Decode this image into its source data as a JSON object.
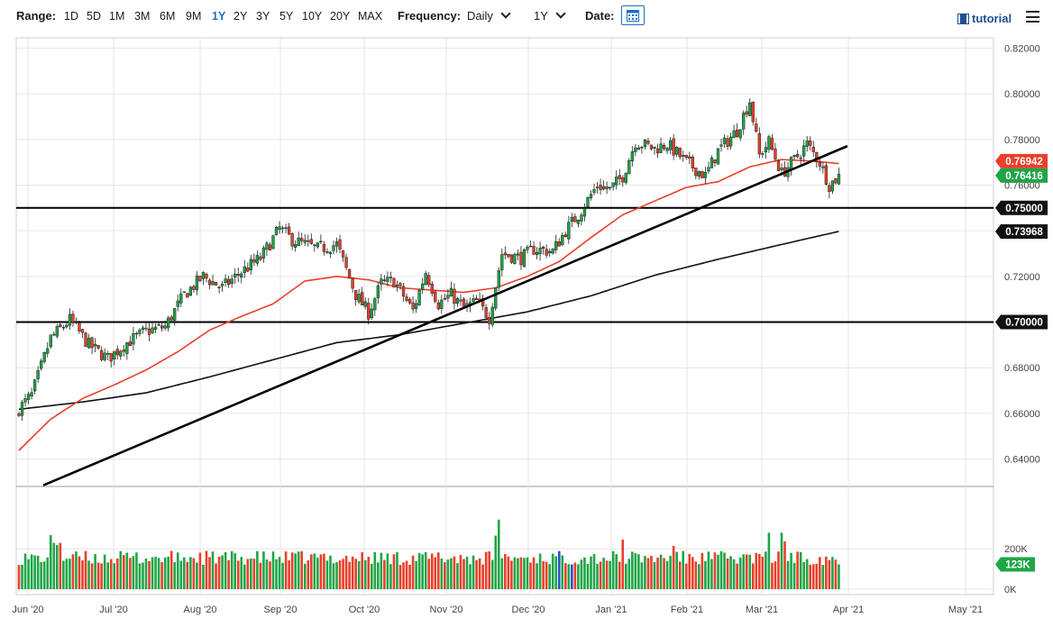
{
  "toolbar": {
    "range_label": "Range:",
    "ranges": [
      "1D",
      "5D",
      "1M",
      "3M",
      "6M",
      "9M",
      "1Y",
      "2Y",
      "3Y",
      "5Y",
      "10Y",
      "20Y",
      "MAX"
    ],
    "active_range": "1Y",
    "frequency_label": "Frequency:",
    "frequency_value": "Daily",
    "period_value": "1Y",
    "date_label": "Date:",
    "tutorial_label": "tutorial"
  },
  "colors": {
    "up": "#1fa547",
    "down": "#e8402a",
    "ma50": "#e8402a",
    "ma200": "#111111",
    "accent": "#1f6fc4",
    "volume_special": "#2a4fc8"
  },
  "chart_data": [
    {
      "type": "candlestick",
      "title": "",
      "x_ticks": [
        "Jun '20",
        "Jul '20",
        "Aug '20",
        "Sep '20",
        "Oct '20",
        "Nov '20",
        "Dec '20",
        "Jan '21",
        "Feb '21",
        "Mar '21",
        "Apr '21",
        "May '21"
      ],
      "y_ticks": [
        "0.64000",
        "0.66000",
        "0.68000",
        "0.70000",
        "0.72000",
        "0.74000",
        "0.76000",
        "0.78000",
        "0.80000",
        "0.82000"
      ],
      "ylim": [
        0.628,
        0.8245
      ],
      "price_tags": [
        {
          "label": "0.76942",
          "value": 0.76942,
          "color": "#e8402a"
        },
        {
          "label": "0.76416",
          "value": 0.76416,
          "color": "#1fa547"
        },
        {
          "label": "0.75000",
          "value": 0.75,
          "color": "#111111"
        },
        {
          "label": "0.73968",
          "value": 0.73968,
          "color": "#111111"
        },
        {
          "label": "0.70000",
          "value": 0.7,
          "color": "#111111"
        }
      ],
      "horizontal_lines": [
        0.7,
        0.75
      ],
      "trendline": [
        [
          0.6285,
          0.7771
        ]
      ],
      "ohlc_anchor_closes": [
        [
          0,
          0.662
        ],
        [
          4,
          0.668
        ],
        [
          10,
          0.693
        ],
        [
          16,
          0.701
        ],
        [
          22,
          0.69
        ],
        [
          28,
          0.684
        ],
        [
          34,
          0.691
        ],
        [
          40,
          0.696
        ],
        [
          46,
          0.698
        ],
        [
          52,
          0.712
        ],
        [
          58,
          0.72
        ],
        [
          64,
          0.715
        ],
        [
          70,
          0.722
        ],
        [
          76,
          0.728
        ],
        [
          82,
          0.741
        ],
        [
          86,
          0.736
        ],
        [
          94,
          0.732
        ],
        [
          100,
          0.734
        ],
        [
          106,
          0.712
        ],
        [
          110,
          0.704
        ],
        [
          114,
          0.717
        ],
        [
          118,
          0.718
        ],
        [
          124,
          0.705
        ],
        [
          128,
          0.722
        ],
        [
          132,
          0.708
        ],
        [
          136,
          0.712
        ],
        [
          140,
          0.706
        ],
        [
          144,
          0.709
        ],
        [
          148,
          0.702
        ],
        [
          152,
          0.73
        ],
        [
          158,
          0.728
        ],
        [
          162,
          0.732
        ],
        [
          168,
          0.731
        ],
        [
          172,
          0.74
        ],
        [
          176,
          0.747
        ],
        [
          182,
          0.76
        ],
        [
          186,
          0.758
        ],
        [
          190,
          0.764
        ],
        [
          194,
          0.779
        ],
        [
          200,
          0.776
        ],
        [
          204,
          0.778
        ],
        [
          210,
          0.77
        ],
        [
          216,
          0.764
        ],
        [
          220,
          0.775
        ],
        [
          226,
          0.784
        ],
        [
          230,
          0.797
        ],
        [
          233,
          0.773
        ],
        [
          236,
          0.779
        ],
        [
          240,
          0.765
        ],
        [
          244,
          0.771
        ],
        [
          248,
          0.778
        ],
        [
          252,
          0.77
        ],
        [
          255,
          0.76
        ],
        [
          258,
          0.764
        ]
      ],
      "ma50": [
        [
          0,
          0.6438
        ],
        [
          10,
          0.6575
        ],
        [
          20,
          0.6665
        ],
        [
          30,
          0.6725
        ],
        [
          40,
          0.679
        ],
        [
          50,
          0.687
        ],
        [
          60,
          0.6965
        ],
        [
          70,
          0.7025
        ],
        [
          80,
          0.708
        ],
        [
          90,
          0.718
        ],
        [
          100,
          0.72
        ],
        [
          110,
          0.7185
        ],
        [
          120,
          0.715
        ],
        [
          130,
          0.714
        ],
        [
          140,
          0.713
        ],
        [
          150,
          0.715
        ],
        [
          160,
          0.72
        ],
        [
          170,
          0.7265
        ],
        [
          180,
          0.737
        ],
        [
          190,
          0.747
        ],
        [
          200,
          0.753
        ],
        [
          210,
          0.759
        ],
        [
          220,
          0.7615
        ],
        [
          230,
          0.768
        ],
        [
          240,
          0.7712
        ],
        [
          250,
          0.7705
        ],
        [
          258,
          0.7694
        ]
      ],
      "ma200": [
        [
          0,
          0.6618
        ],
        [
          20,
          0.665
        ],
        [
          40,
          0.669
        ],
        [
          60,
          0.676
        ],
        [
          80,
          0.6835
        ],
        [
          100,
          0.691
        ],
        [
          120,
          0.6945
        ],
        [
          140,
          0.6995
        ],
        [
          160,
          0.7045
        ],
        [
          180,
          0.7115
        ],
        [
          200,
          0.7205
        ],
        [
          220,
          0.7275
        ],
        [
          240,
          0.734
        ],
        [
          258,
          0.7397
        ]
      ],
      "volume": {
        "y_ticks": [
          "0K",
          "200K"
        ],
        "last_label": "123K",
        "last_value": 123000,
        "ylim": [
          0,
          420000
        ]
      }
    }
  ]
}
